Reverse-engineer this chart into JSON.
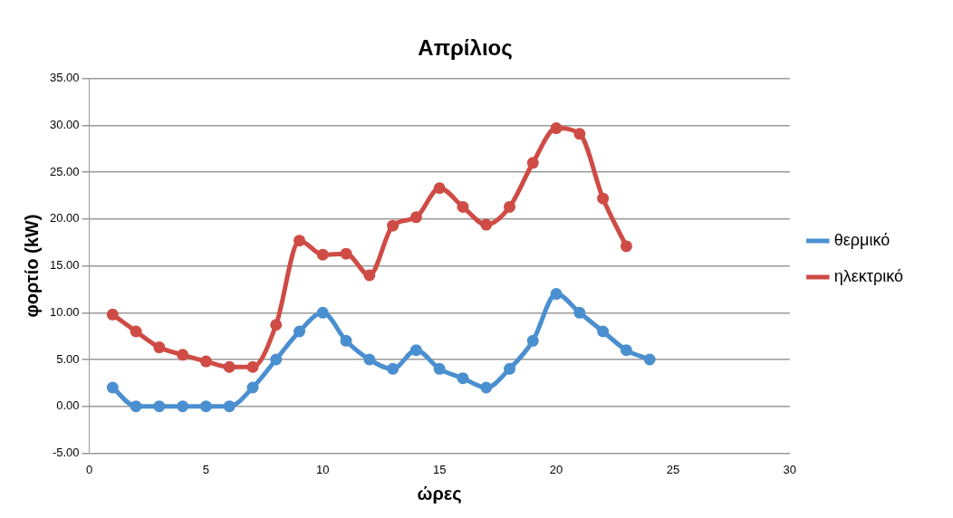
{
  "chart_data": {
    "type": "line",
    "title": "Απρίλιος",
    "xlabel": "ώρες",
    "ylabel": "φορτίο (kW)",
    "series": [
      {
        "name": "θερμικό",
        "color": "#4a8fd0",
        "x": [
          1,
          2,
          3,
          4,
          5,
          6,
          7,
          8,
          9,
          10,
          11,
          12,
          13,
          14,
          15,
          16,
          17,
          18,
          19,
          20,
          21,
          22,
          23,
          24
        ],
        "values": [
          2,
          0,
          0,
          0,
          0,
          0,
          2,
          5,
          8,
          10,
          7,
          5,
          4,
          6,
          4,
          3,
          2,
          4,
          7,
          12,
          10,
          8,
          6,
          5
        ]
      },
      {
        "name": "ηλεκτρικό",
        "color": "#cf4b45",
        "x": [
          1,
          2,
          3,
          4,
          5,
          6,
          7,
          8,
          9,
          10,
          11,
          12,
          13,
          14,
          15,
          16,
          17,
          18,
          19,
          20,
          21,
          22,
          23
        ],
        "values": [
          9.8,
          8,
          6.3,
          5.5,
          4.8,
          4.2,
          4.2,
          8.7,
          17.7,
          16.2,
          16.3,
          14,
          19.3,
          20.2,
          23.3,
          21.3,
          19.4,
          21.3,
          26,
          29.7,
          29.1,
          22.2,
          17.1
        ]
      }
    ],
    "xlim": [
      0,
      30
    ],
    "xticks": [
      0,
      5,
      10,
      15,
      20,
      25,
      30
    ],
    "ylim": [
      -5,
      35
    ],
    "yticks": [
      {
        "value": -5,
        "label": "-5.00"
      },
      {
        "value": 0,
        "label": "0.00"
      },
      {
        "value": 5,
        "label": "5.00"
      },
      {
        "value": 10,
        "label": "10.00"
      },
      {
        "value": 15,
        "label": "15.00"
      },
      {
        "value": 20,
        "label": "20.00"
      },
      {
        "value": 25,
        "label": "25.00"
      },
      {
        "value": 30,
        "label": "30.00"
      },
      {
        "value": 35,
        "label": "35.00"
      }
    ],
    "grid": "y",
    "legend": "right",
    "marker": "circle",
    "line_style": "solid"
  }
}
